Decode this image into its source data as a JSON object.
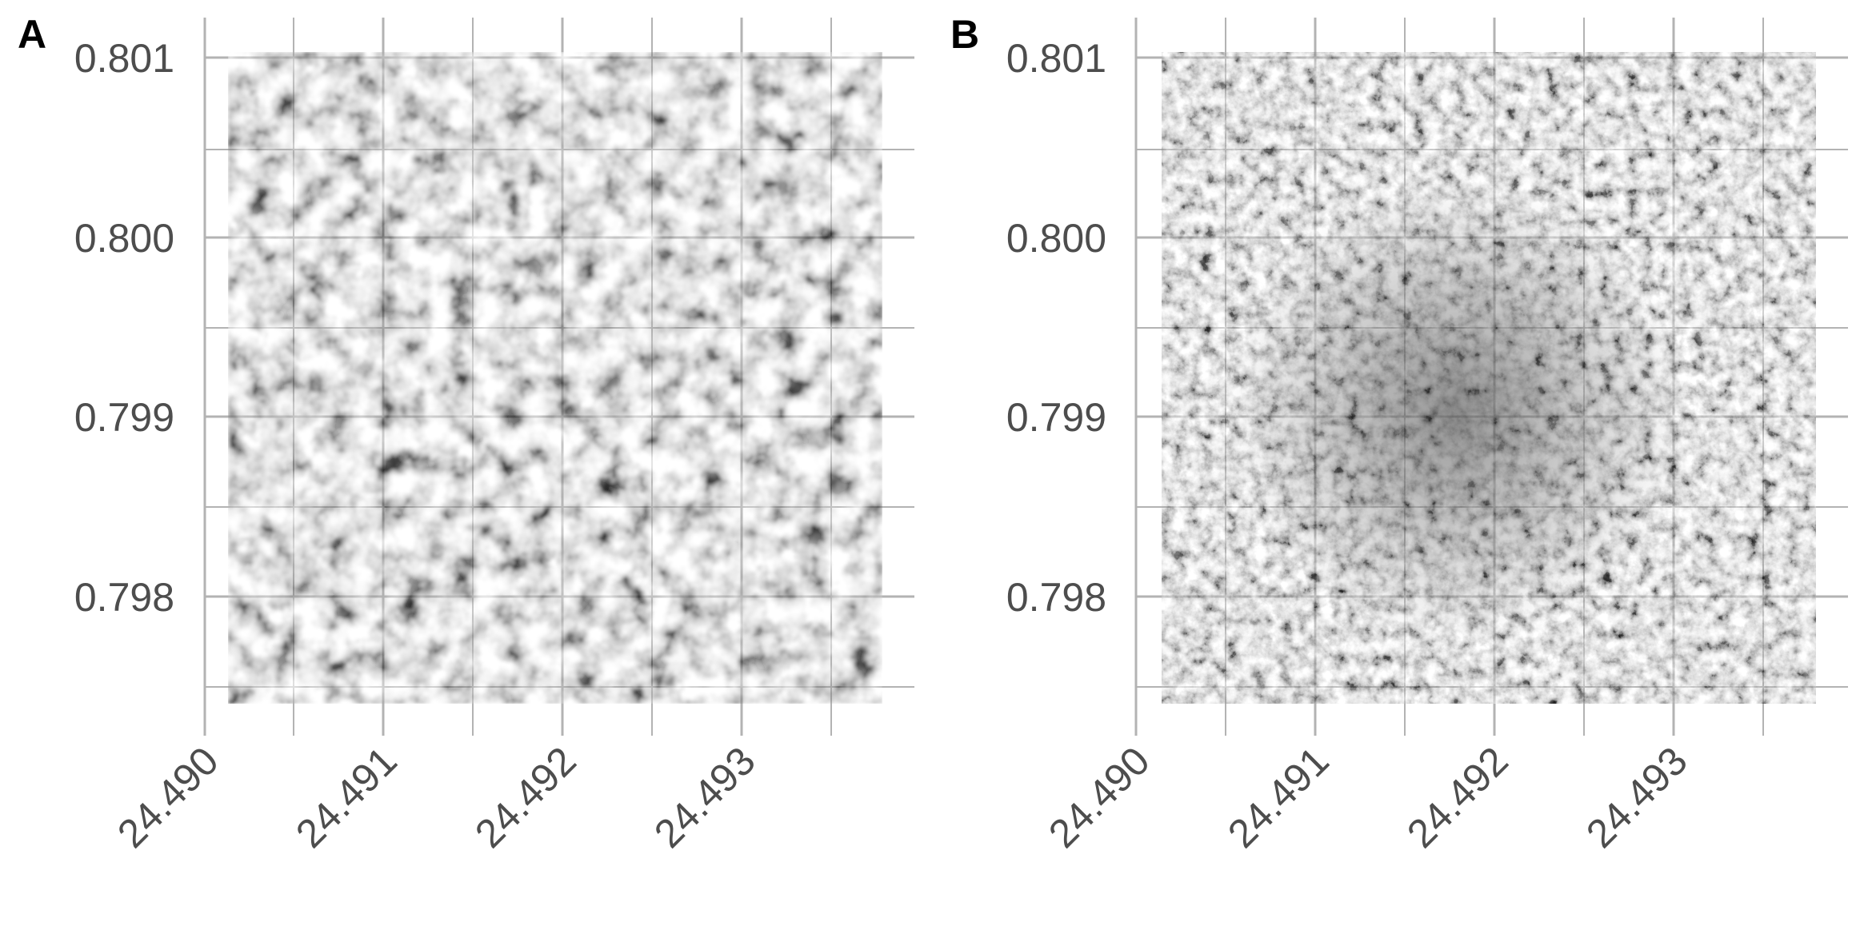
{
  "figure": {
    "panels": [
      {
        "letter": "A",
        "image_type": "grayscale-aerial-canopy-blurred",
        "x_ticks": [
          "24.490",
          "24.491",
          "24.492",
          "24.493"
        ],
        "y_ticks": [
          "0.801",
          "0.800",
          "0.799",
          "0.798"
        ]
      },
      {
        "letter": "B",
        "image_type": "grayscale-aerial-canopy-sharp",
        "x_ticks": [
          "24.490",
          "24.491",
          "24.492",
          "24.493"
        ],
        "y_ticks": [
          "0.801",
          "0.800",
          "0.799",
          "0.798"
        ]
      }
    ],
    "colors": {
      "gridline": "#b3b3b3",
      "tick_text": "#4d4d4d",
      "panel_letter": "#000000"
    }
  }
}
